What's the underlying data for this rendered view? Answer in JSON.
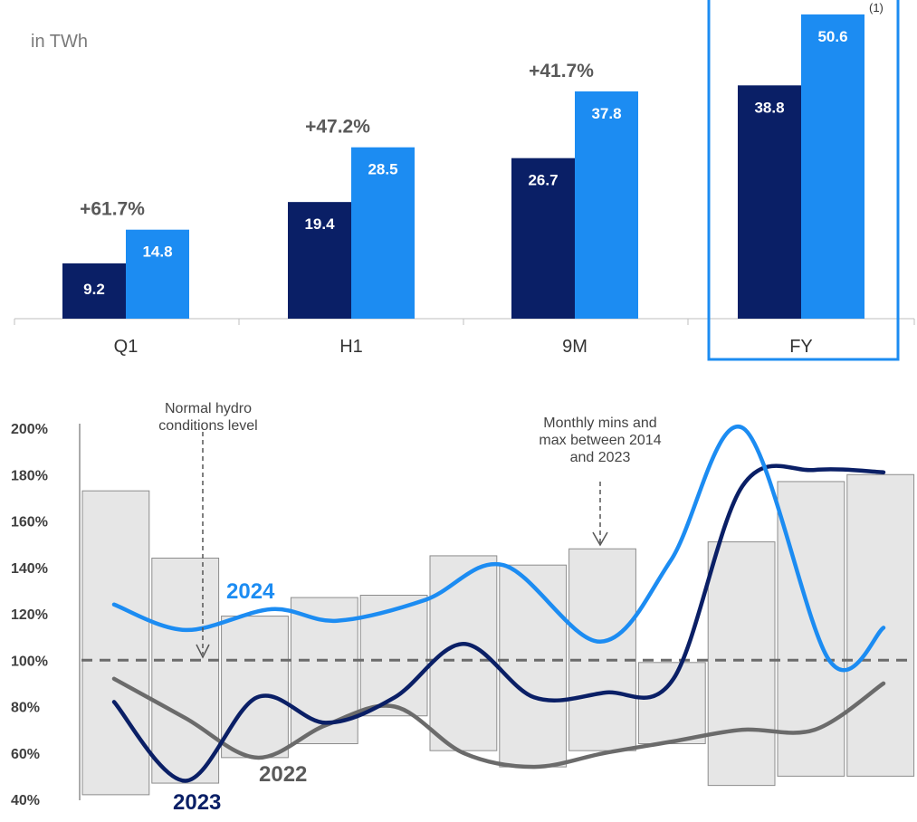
{
  "colors": {
    "dark": "#0a1f66",
    "light": "#1c8cf2",
    "gray_line": "#6b6b6b",
    "band_fill": "#e6e6e6",
    "band_stroke": "#8c8c8c",
    "highlight": "#1c8cf2"
  },
  "chart_data": [
    {
      "type": "bar",
      "unit_label": "in TWh",
      "categories": [
        "Q1",
        "H1",
        "9M",
        "FY"
      ],
      "series": [
        {
          "values": [
            9.2,
            19.4,
            26.7,
            38.8
          ]
        },
        {
          "values": [
            14.8,
            28.5,
            37.8,
            50.6
          ]
        }
      ],
      "growth_labels": [
        "+61.7%",
        "+47.2%",
        "+41.7%",
        ""
      ],
      "footnote": "(1)",
      "highlighted_category": "FY"
    },
    {
      "type": "line",
      "y_ticks": [
        "200%",
        "180%",
        "160%",
        "140%",
        "120%",
        "100%",
        "80%",
        "60%",
        "40%"
      ],
      "ylim": [
        40,
        200
      ],
      "reference_line": 100,
      "annotations": {
        "normal": "Normal hydro conditions level",
        "normal_lines": [
          "Normal hydro",
          "conditions level"
        ],
        "band": "Monthly mins and max between 2014 and 2023",
        "band_lines": [
          "Monthly mins and",
          "max between 2014",
          "and 2023"
        ]
      },
      "month_bands": [
        [
          42,
          173
        ],
        [
          47,
          144
        ],
        [
          58,
          119
        ],
        [
          64,
          127
        ],
        [
          76,
          128
        ],
        [
          61,
          145
        ],
        [
          54,
          141
        ],
        [
          61,
          148
        ],
        [
          64,
          99
        ],
        [
          46,
          151
        ],
        [
          50,
          177
        ],
        [
          50,
          180
        ]
      ],
      "series": [
        {
          "name": "2024",
          "values": [
            124,
            113,
            122,
            117,
            126,
            141,
            108,
            143,
            200,
            100,
            114
          ],
          "color_key": "light"
        },
        {
          "name": "2023",
          "values": [
            82,
            48,
            84,
            73,
            84,
            107,
            84,
            86,
            92,
            175,
            182,
            181
          ],
          "color_key": "dark"
        },
        {
          "name": "2022",
          "values": [
            92,
            75,
            58,
            72,
            80,
            60,
            54,
            60,
            65,
            70,
            70,
            90
          ],
          "color_key": "gray_line"
        }
      ]
    }
  ]
}
